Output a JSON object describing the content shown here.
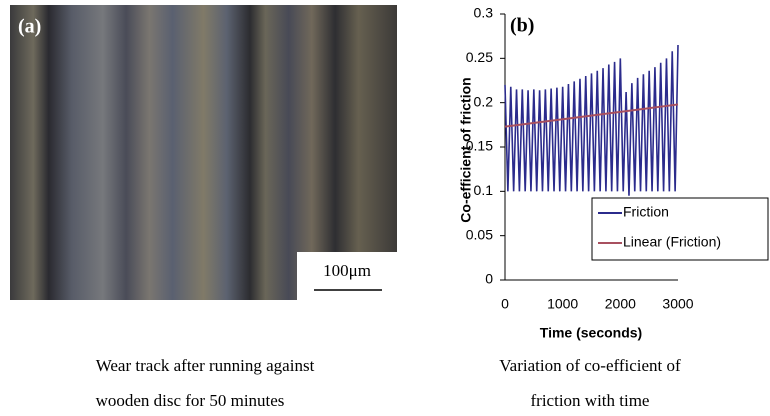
{
  "figure_a": {
    "label": "(a)",
    "scale_bar": "100μm",
    "caption": [
      "Wear track after running against",
      "wooden disc for 50 minutes"
    ]
  },
  "chart_data": {
    "type": "line",
    "annotation": "(b)",
    "x_label": "Time (seconds)",
    "y_label": "Co-efficient of friction",
    "caption": [
      "Variation of co-efficient of",
      "friction with time"
    ],
    "xlim": [
      0,
      3000
    ],
    "xticks": [
      0,
      1000,
      2000,
      3000
    ],
    "ylim": [
      0,
      0.3
    ],
    "yticks": [
      0,
      0.05,
      0.1,
      0.15,
      0.2,
      0.25,
      0.3
    ],
    "grid": false,
    "legend": "lower right",
    "series": [
      {
        "name": "Friction",
        "color": "#2b2b8c",
        "x": [
          0,
          50,
          100,
          150,
          200,
          250,
          300,
          350,
          400,
          450,
          500,
          550,
          600,
          650,
          700,
          750,
          800,
          850,
          900,
          950,
          1000,
          1050,
          1100,
          1150,
          1200,
          1250,
          1300,
          1350,
          1400,
          1450,
          1500,
          1550,
          1600,
          1650,
          1700,
          1750,
          1800,
          1850,
          1900,
          1950,
          2000,
          2050,
          2100,
          2150,
          2200,
          2250,
          2300,
          2350,
          2400,
          2450,
          2500,
          2550,
          2600,
          2650,
          2700,
          2750,
          2800,
          2850,
          2900,
          2950,
          3000
        ],
        "values": [
          0.22,
          0.1,
          0.218,
          0.1,
          0.215,
          0.1,
          0.215,
          0.1,
          0.214,
          0.1,
          0.215,
          0.1,
          0.214,
          0.1,
          0.215,
          0.1,
          0.216,
          0.1,
          0.217,
          0.1,
          0.218,
          0.1,
          0.221,
          0.1,
          0.224,
          0.1,
          0.227,
          0.1,
          0.23,
          0.1,
          0.233,
          0.1,
          0.236,
          0.1,
          0.239,
          0.1,
          0.243,
          0.1,
          0.246,
          0.1,
          0.25,
          0.1,
          0.212,
          0.095,
          0.222,
          0.1,
          0.228,
          0.1,
          0.232,
          0.1,
          0.236,
          0.1,
          0.24,
          0.1,
          0.245,
          0.1,
          0.25,
          0.1,
          0.258,
          0.1,
          0.265
        ]
      },
      {
        "name": "Linear (Friction)",
        "color": "#a8505f",
        "x": [
          0,
          3000
        ],
        "values": [
          0.173,
          0.198
        ]
      }
    ]
  }
}
